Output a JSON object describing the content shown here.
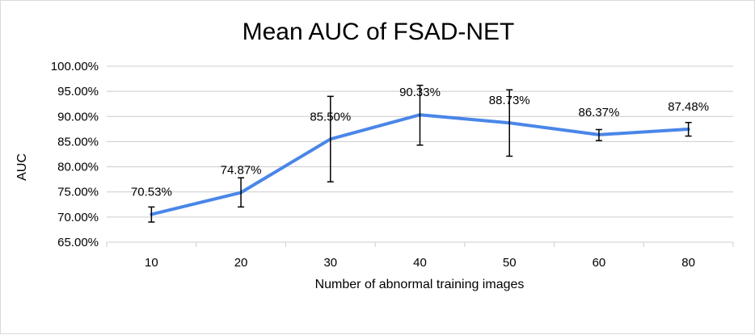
{
  "chart_data": {
    "type": "line",
    "title": "Mean AUC of FSAD-NET",
    "xlabel": "Number of abnormal training images",
    "ylabel": "AUC",
    "categories": [
      "10",
      "20",
      "30",
      "40",
      "50",
      "60",
      "80"
    ],
    "series": [
      {
        "values": [
          70.53,
          74.87,
          85.5,
          90.33,
          88.73,
          86.37,
          87.48
        ],
        "data_labels": [
          "70.53%",
          "74.87%",
          "85.50%",
          "90.33%",
          "88.73%",
          "86.37%",
          "87.48%"
        ],
        "error_low": [
          69.0,
          72.0,
          77.0,
          84.3,
          82.1,
          85.2,
          86.1
        ],
        "error_high": [
          72.0,
          77.8,
          94.0,
          96.2,
          95.3,
          87.4,
          88.8
        ],
        "color": "#4a86e8"
      }
    ],
    "ylim": [
      65,
      100
    ],
    "yticks": [
      65,
      70,
      75,
      80,
      85,
      90,
      95,
      100
    ],
    "ytick_labels": [
      "65.00%",
      "70.00%",
      "75.00%",
      "80.00%",
      "85.00%",
      "90.00%",
      "95.00%",
      "100.00%"
    ],
    "grid": true,
    "legend": "none",
    "colors": {
      "line": "#4a86e8",
      "grid": "#cccccc",
      "error_bar": "#000000"
    }
  }
}
